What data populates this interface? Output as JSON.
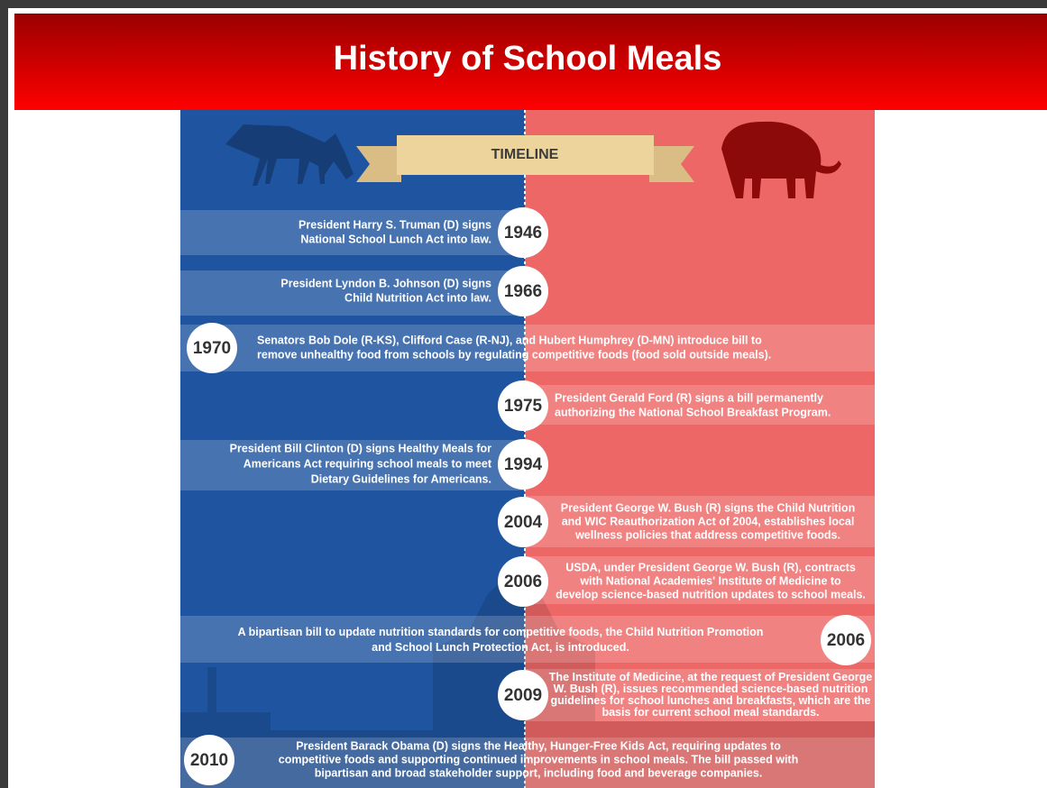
{
  "header": {
    "title": "History of School Meals"
  },
  "timeline": {
    "label": "TIMELINE",
    "events": [
      {
        "year": "1946",
        "lines": [
          "President Harry S. Truman (D) signs",
          "National School Lunch Act into law."
        ]
      },
      {
        "year": "1966",
        "lines": [
          "President Lyndon B. Johnson (D) signs",
          "Child Nutrition Act into law."
        ]
      },
      {
        "year": "1970",
        "lines": [
          "Senators Bob Dole (R-KS), Clifford Case (R-NJ), and Hubert Humphrey (D-MN) introduce bill to",
          "remove unhealthy food from schools by regulating competitive foods (food sold outside meals)."
        ]
      },
      {
        "year": "1975",
        "lines": [
          "President Gerald Ford (R) signs a bill permanently",
          "authorizing the National School Breakfast Program."
        ]
      },
      {
        "year": "1994",
        "lines": [
          "President Bill Clinton (D) signs Healthy Meals for",
          "Americans Act requiring school meals to meet",
          "Dietary Guidelines for Americans."
        ]
      },
      {
        "year": "2004",
        "lines": [
          "President George W. Bush (R) signs the Child Nutrition",
          "and WIC Reauthorization Act of 2004, establishes local",
          "wellness policies that address competitive foods."
        ]
      },
      {
        "year": "2006",
        "lines": [
          "USDA, under President George W. Bush (R), contracts",
          "with National Academies' Institute of Medicine to",
          "develop science-based nutrition updates to school meals."
        ]
      },
      {
        "year": "2006",
        "lines": [
          "A bipartisan bill to update nutrition standards for competitive foods, the Child Nutrition Promotion",
          "and School Lunch Protection Act, is introduced."
        ]
      },
      {
        "year": "2009",
        "lines": [
          "The Institute of Medicine, at the request of President George",
          "W. Bush (R), issues recommended science-based nutrition",
          "guidelines for school lunches and breakfasts, which are the",
          "basis for current school meal standards."
        ]
      },
      {
        "year": "2010",
        "lines": [
          "President Barack Obama (D) signs the Healthy, Hunger-Free Kids Act, requiring updates to",
          "competitive foods and supporting continued improvements in school meals. The bill passed with",
          "bipartisan and broad stakeholder support, including food and beverage companies."
        ]
      }
    ]
  }
}
